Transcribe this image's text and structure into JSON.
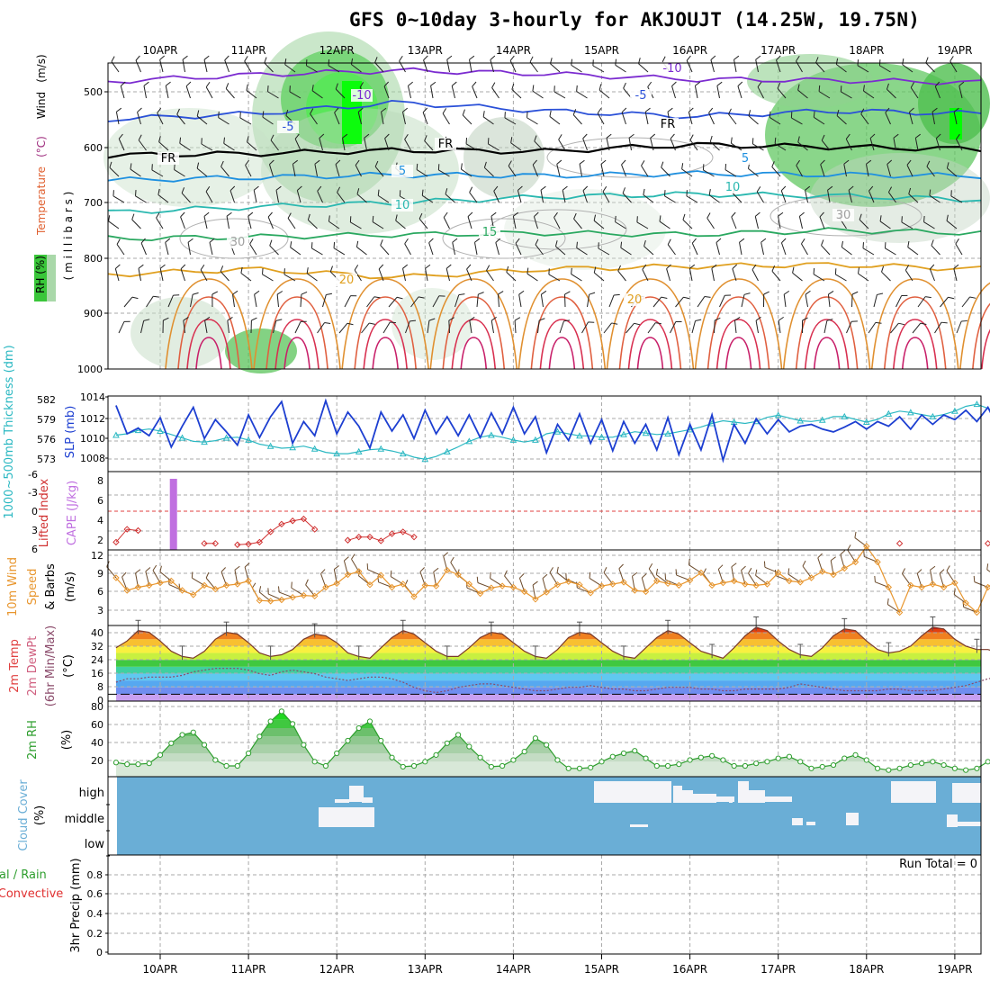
{
  "title": "GFS 0~10day 3-hourly for AKJOUJT (14.25W, 19.75N)",
  "colors": {
    "grid": "#aaaaaa",
    "slp": "#1d3fd1",
    "thick": "#2bb8c2",
    "cape": "#c070e0",
    "li": "#d03030",
    "wind10": "#e8962e",
    "rhgreen": "#2e9e2e",
    "cloud": "#6aaed6"
  },
  "chart_data": [
    {
      "panel": "profile",
      "type": "contour",
      "xticks": [
        "10APR",
        "11APR",
        "12APR",
        "13APR",
        "14APR",
        "15APR",
        "16APR",
        "17APR",
        "18APR",
        "19APR"
      ],
      "ylabel_parts": [
        "RH (%)",
        "Temperature",
        "(°C)",
        "Wind",
        "(m/s)",
        "( m i l l i b a r s )"
      ],
      "yticks": [
        "500",
        "600",
        "700",
        "800",
        "900",
        "1000"
      ],
      "isotherms": [
        {
          "label": "-10",
          "value": -10,
          "color": "#7b2bd0",
          "p": [
            482,
            470,
            462,
            468,
            478,
            480,
            484
          ]
        },
        {
          "label": "-5",
          "value": -5,
          "color": "#2a50d8",
          "p": [
            550,
            540,
            520,
            535,
            545,
            535,
            540
          ]
        },
        {
          "label": "FR",
          "value": 0,
          "color": "#000000",
          "p": [
            615,
            612,
            606,
            608,
            596,
            600,
            604
          ]
        },
        {
          "label": "5",
          "value": 5,
          "color": "#1e90e0",
          "p": [
            660,
            655,
            650,
            652,
            648,
            650,
            652
          ]
        },
        {
          "label": "10",
          "value": 10,
          "color": "#2ab8b0",
          "p": [
            718,
            708,
            700,
            690,
            685,
            688,
            695
          ]
        },
        {
          "label": "15",
          "value": 15,
          "color": "#2aa860",
          "p": [
            765,
            762,
            758,
            755,
            758,
            750,
            755
          ]
        },
        {
          "label": "20",
          "value": 20,
          "color": "#e0a020",
          "p": [
            830,
            820,
            835,
            820,
            815,
            812,
            820
          ]
        }
      ],
      "annotations": [
        "-10",
        "-5",
        "FR",
        "5",
        "10",
        "15",
        "20",
        "30"
      ]
    },
    {
      "panel": "slp_thickness",
      "type": "line",
      "ylabel_left": "1000~500mb Thickness (dm)",
      "ylabel_right": "SLP (mb)",
      "left_ticks": [
        "582",
        "579",
        "576",
        "573"
      ],
      "right_ticks": [
        "1014",
        "1012",
        "1010",
        "1008"
      ],
      "series": [
        {
          "name": "SLP (mb)",
          "ylim": [
            1006,
            1014
          ],
          "values": [
            1013,
            1010,
            1010.6,
            1009.8,
            1011.7,
            1008.6,
            1010.8,
            1012.8,
            1009.5,
            1011.5,
            1010.2,
            1008.8,
            1012.0,
            1009.6,
            1011.8,
            1013.4,
            1009.0,
            1011.3,
            1009.8,
            1013.5,
            1010.0,
            1012.3,
            1010.8,
            1008.5,
            1012.3,
            1010.3,
            1012.0,
            1009.5,
            1012.5,
            1010.0,
            1011.8,
            1009.8,
            1012.0,
            1009.6,
            1012.2,
            1010.0,
            1012.8,
            1010.0,
            1011.8,
            1008.0,
            1011.0,
            1009.3,
            1012.1,
            1009.0,
            1011.5,
            1008.2,
            1011.3,
            1009.0,
            1011.0,
            1008.3,
            1011.7,
            1007.8,
            1011.0,
            1008.3,
            1012.0,
            1007.2,
            1011.0,
            1009.0,
            1011.6,
            1010.0,
            1011.5,
            1010.2,
            1010.8,
            1011.0,
            1010.5,
            1010.2,
            1010.7,
            1011.3,
            1010.5,
            1011.3,
            1010.8,
            1011.8,
            1010.5,
            1012.0,
            1011.0,
            1012.0,
            1011.5,
            1012.5,
            1011.3,
            1012.8,
            1010.5
          ]
        },
        {
          "name": "1000~500mb Thickness (dm)",
          "ylim": [
            571,
            582
          ],
          "values": [
            576.3,
            576.5,
            577.0,
            577.2,
            576.9,
            576.4,
            575.9,
            575.4,
            575.3,
            575.5,
            575.9,
            576.0,
            575.6,
            575.0,
            574.7,
            574.4,
            574.5,
            574.7,
            574.3,
            573.8,
            573.6,
            573.6,
            573.9,
            574.2,
            574.3,
            574.0,
            573.6,
            573.1,
            572.8,
            573.2,
            573.9,
            574.6,
            575.4,
            576.0,
            576.3,
            576.0,
            575.6,
            575.3,
            575.6,
            576.5,
            576.8,
            576.5,
            576.2,
            576.2,
            576.0,
            576.0,
            576.4,
            576.8,
            576.6,
            576.4,
            576.5,
            576.8,
            577.1,
            577.5,
            578.0,
            578.4,
            578.2,
            578.0,
            578.3,
            578.9,
            579.2,
            578.8,
            578.4,
            578.3,
            578.5,
            579.0,
            579.0,
            578.6,
            578.2,
            578.6,
            579.4,
            579.8,
            579.6,
            579.3,
            579.0,
            579.3,
            579.8,
            580.5,
            580.8,
            580.2,
            579.5
          ]
        }
      ]
    },
    {
      "panel": "cape_li",
      "type": "bar+line",
      "ylabel_left": "Lifted Index",
      "ylabel_right": "CAPE (J/kg)",
      "li_ticks": [
        "-6",
        "-3",
        "0",
        "3",
        "6"
      ],
      "cape_ticks": [
        "8",
        "6",
        "4",
        "2"
      ],
      "cape_bar": {
        "x_day": 0.15,
        "value": 8.5
      },
      "li_values": [
        4.8,
        2.8,
        3.0,
        null,
        null,
        null,
        null,
        null,
        5.0,
        5.0,
        null,
        5.2,
        5.1,
        4.8,
        3.2,
        2.0,
        1.5,
        1.2,
        2.8,
        null,
        null,
        4.5,
        4.0,
        4.0,
        4.6,
        3.5,
        3.2,
        4.0,
        null,
        null,
        null,
        null,
        null,
        null,
        null,
        null,
        null,
        null,
        null,
        null,
        null,
        null,
        null,
        null,
        null,
        null,
        null,
        null,
        null,
        null,
        null,
        null,
        null,
        null,
        null,
        null,
        null,
        null,
        null,
        null,
        null,
        null,
        null,
        null,
        null,
        null,
        null,
        null,
        null,
        null,
        null,
        5.0,
        null,
        null,
        null,
        null,
        null,
        null,
        null,
        5.0,
        null
      ]
    },
    {
      "panel": "wind10m",
      "type": "line",
      "ylabel": [
        "10m Wind",
        "Speed",
        "& Barbs",
        "(m/s)"
      ],
      "yticks": [
        "12",
        "9",
        "6",
        "3"
      ],
      "ylim": [
        0,
        12
      ],
      "values": [
        7.0,
        5.0,
        5.5,
        5.8,
        6.2,
        6.5,
        5.0,
        4.3,
        5.8,
        5.2,
        5.8,
        6.0,
        6.5,
        3.4,
        3.3,
        3.5,
        3.9,
        4.2,
        4.1,
        5.5,
        6.1,
        7.5,
        8.0,
        5.9,
        7.4,
        5.5,
        6.0,
        4.0,
        5.8,
        5.7,
        8.2,
        7.5,
        6.0,
        4.5,
        5.4,
        5.7,
        5.5,
        4.8,
        3.6,
        4.7,
        5.9,
        6.4,
        5.9,
        4.6,
        5.7,
        6.0,
        6.3,
        5.0,
        4.8,
        6.5,
        6.1,
        5.8,
        6.6,
        7.8,
        5.8,
        6.2,
        6.5,
        6.0,
        5.8,
        6.0,
        7.8,
        6.5,
        6.3,
        7.0,
        8.0,
        7.5,
        8.5,
        9.5,
        12.0,
        9.5,
        5.5,
        1.5,
        5.8,
        5.5,
        6.0,
        5.5,
        6.2,
        3.0,
        1.5,
        5.5,
        7.0
      ]
    },
    {
      "panel": "temp_dewpt",
      "type": "area+line",
      "ylabel": [
        "2m Temp",
        "2m DewPt",
        "(6hr Min/Max)",
        "(°C)"
      ],
      "yticks": [
        "40",
        "32",
        "24",
        "16",
        "8",
        "0"
      ],
      "ylim": [
        -4,
        40
      ],
      "temp": [
        27,
        31,
        37,
        36,
        31,
        25,
        22,
        21,
        25,
        32,
        36,
        35,
        30,
        24,
        22,
        23,
        26,
        32,
        35,
        34,
        30,
        24,
        22,
        21,
        27,
        33,
        37,
        35,
        30,
        25,
        22,
        22,
        27,
        33,
        36,
        35,
        30,
        25,
        22,
        21,
        26,
        33,
        36,
        35,
        30,
        25,
        22,
        21,
        27,
        33,
        37,
        35,
        30,
        25,
        23,
        21,
        27,
        34,
        39,
        37,
        31,
        26,
        23,
        22,
        27,
        34,
        38,
        37,
        31,
        26,
        24,
        25,
        28,
        34,
        39,
        38,
        32,
        28,
        26,
        26,
        24
      ],
      "dewpt": [
        7,
        9,
        9,
        10,
        10,
        10,
        11,
        13,
        14,
        15,
        15,
        15,
        14,
        12,
        11,
        13,
        14,
        13,
        12,
        10,
        9,
        8,
        9,
        10,
        10,
        9,
        7,
        4,
        2,
        1,
        2,
        4,
        5,
        6,
        6,
        5,
        4,
        3,
        2,
        2,
        3,
        4,
        4,
        5,
        4,
        3,
        3,
        2,
        2,
        3,
        4,
        4,
        4,
        3,
        3,
        2,
        2,
        3,
        3,
        3,
        3,
        4,
        6,
        5,
        4,
        3,
        2,
        2,
        2,
        2,
        3,
        3,
        2,
        2,
        2,
        3,
        4,
        5,
        7,
        9,
        10
      ]
    },
    {
      "panel": "rh2m",
      "type": "area+line",
      "ylabel": [
        "2m RH",
        "(%)"
      ],
      "yticks": [
        "80",
        "60",
        "40",
        "20"
      ],
      "ylim": [
        0,
        90
      ],
      "values": [
        19,
        17,
        17,
        18,
        28,
        42,
        52,
        55,
        40,
        22,
        15,
        15,
        30,
        50,
        68,
        80,
        65,
        40,
        20,
        15,
        30,
        45,
        60,
        68,
        45,
        25,
        14,
        15,
        20,
        28,
        42,
        52,
        38,
        25,
        14,
        15,
        22,
        32,
        48,
        40,
        22,
        12,
        12,
        13,
        20,
        26,
        30,
        33,
        24,
        15,
        15,
        17,
        22,
        25,
        27,
        22,
        15,
        15,
        18,
        20,
        24,
        26,
        20,
        12,
        14,
        16,
        24,
        28,
        22,
        12,
        10,
        12,
        16,
        18,
        20,
        16,
        12,
        10,
        12,
        20,
        26
      ]
    },
    {
      "panel": "cloud",
      "type": "heatmap",
      "ylabel": [
        "Cloud Cover",
        "(%)"
      ],
      "yticks": [
        "high",
        "middle",
        "low"
      ]
    },
    {
      "panel": "precip",
      "type": "bar",
      "ylabel": [
        "Total / Rain",
        "Convective",
        "3hr Precip (mm)"
      ],
      "yticks": [
        "0.8",
        "0.6",
        "0.4",
        "0.2",
        "0"
      ],
      "run_total": "Run Total = 0",
      "xticks": [
        "10APR",
        "11APR",
        "12APR",
        "13APR",
        "14APR",
        "15APR",
        "16APR",
        "17APR",
        "18APR",
        "19APR"
      ]
    }
  ]
}
